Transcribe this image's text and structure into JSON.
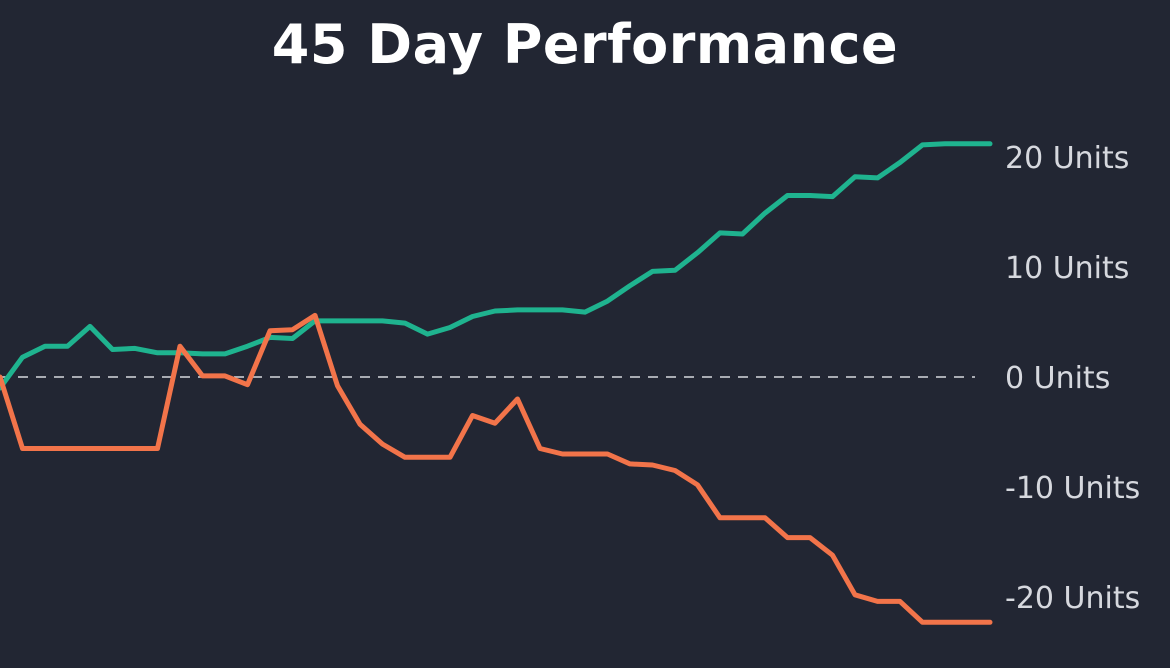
{
  "colors": {
    "background": "#222633",
    "text": "#ffffff",
    "tick_text": "#d6d8de",
    "zero_line": "#d6d8de",
    "series_green": "#1fb38f",
    "series_orange": "#f2744a"
  },
  "chart_data": {
    "type": "line",
    "title": "45 Day Performance",
    "xlabel": "",
    "ylabel": "",
    "x": [
      1,
      2,
      3,
      4,
      5,
      6,
      7,
      8,
      9,
      10,
      11,
      12,
      13,
      14,
      15,
      16,
      17,
      18,
      19,
      20,
      21,
      22,
      23,
      24,
      25,
      26,
      27,
      28,
      29,
      30,
      31,
      32,
      33,
      34,
      35,
      36,
      37,
      38,
      39,
      40,
      41,
      42,
      43,
      44,
      45
    ],
    "ylim": [
      -25.5,
      25
    ],
    "y_axis_position": "right",
    "yticks": [
      20,
      10,
      0,
      -10,
      -20
    ],
    "ytick_labels": [
      "20 Units",
      "10 Units",
      "0 Units",
      "-10 Units",
      "-20 Units"
    ],
    "zero_line": "dashed",
    "grid": false,
    "legend": "none",
    "series": [
      {
        "color": "#1fb38f",
        "values": [
          -1,
          1.8,
          2.8,
          2.8,
          4.6,
          2.5,
          2.6,
          2.2,
          2.2,
          2.1,
          2.1,
          2.8,
          3.6,
          3.5,
          5.1,
          5.1,
          5.1,
          5.1,
          4.9,
          3.9,
          4.5,
          5.5,
          6,
          6.1,
          6.1,
          6.1,
          5.9,
          6.9,
          8.3,
          9.6,
          9.7,
          11.3,
          13.1,
          13,
          14.9,
          16.5,
          16.5,
          16.4,
          18.2,
          18.1,
          19.5,
          21.1,
          21.2,
          21.2,
          21.2
        ],
        "fill": false
      },
      {
        "color": "#f2744a",
        "values": [
          0,
          -6.5,
          -6.5,
          -6.5,
          -6.5,
          -6.5,
          -6.5,
          -6.5,
          2.8,
          0.1,
          0.1,
          -0.7,
          4.2,
          4.3,
          5.6,
          -0.8,
          -4.3,
          -6.1,
          -7.3,
          -7.3,
          -7.3,
          -3.5,
          -4.2,
          -2,
          -6.5,
          -7,
          -7,
          -7,
          -7.9,
          -8,
          -8.5,
          -9.8,
          -12.8,
          -12.8,
          -12.8,
          -14.6,
          -14.6,
          -16.2,
          -19.8,
          -20.4,
          -20.4,
          -22.3,
          -22.3,
          -22.3,
          -22.3
        ],
        "fill": false
      }
    ]
  }
}
